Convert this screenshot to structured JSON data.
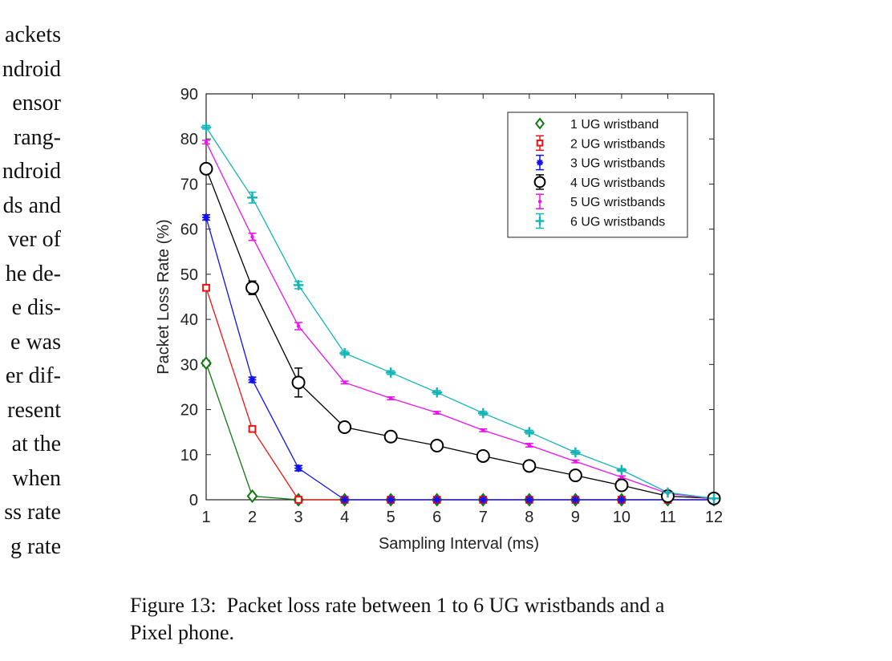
{
  "body_text_lines": [
    "ackets",
    "ndroid",
    "ensor",
    "rang-",
    "ndroid",
    "ds and",
    "ver of",
    "he de-",
    "e dis-",
    "e was",
    "er dif-",
    "resent",
    "at the",
    "when",
    "ss rate",
    "g rate"
  ],
  "caption": {
    "label": "Figure 13:",
    "line1": "Packet loss rate between 1 to 6 UG wristbands and a",
    "line2": "Pixel phone."
  },
  "chart_data": {
    "type": "line",
    "title": "",
    "xlabel": "Sampling Interval (ms)",
    "ylabel": "Packet Loss Rate (%)",
    "xlim": [
      1,
      12
    ],
    "ylim": [
      0,
      90
    ],
    "xticks": [
      1,
      2,
      3,
      4,
      5,
      6,
      7,
      8,
      9,
      10,
      11,
      12
    ],
    "yticks": [
      0,
      10,
      20,
      30,
      40,
      50,
      60,
      70,
      80,
      90
    ],
    "grid": false,
    "legend_position": "top-right",
    "x": [
      1,
      2,
      3,
      4,
      5,
      6,
      7,
      8,
      9,
      10,
      11,
      12
    ],
    "series": [
      {
        "name": "1 UG wristband",
        "color": "#117711",
        "marker": "diamond",
        "values": [
          30.3,
          0.8,
          0,
          0,
          0,
          0,
          0,
          0,
          0,
          0,
          0,
          0
        ],
        "errors": [
          0.6,
          0.3,
          0,
          0,
          0,
          0,
          0,
          0,
          0,
          0,
          0,
          0
        ]
      },
      {
        "name": "2 UG wristbands",
        "color": "#ee1111",
        "marker": "square",
        "values": [
          47,
          15.7,
          0,
          0,
          0,
          0,
          0,
          0,
          0,
          0,
          0,
          0
        ],
        "errors": [
          0.6,
          0.5,
          0,
          0,
          0,
          0,
          0,
          0,
          0,
          0,
          0,
          0
        ]
      },
      {
        "name": "3 UG wristbands",
        "color": "#1111ee",
        "marker": "asterisk",
        "values": [
          62.6,
          26.6,
          7,
          0,
          0,
          0,
          0,
          0,
          0,
          0,
          0,
          0
        ],
        "errors": [
          0.6,
          0.6,
          0.6,
          0,
          0,
          0,
          0,
          0,
          0,
          0,
          0,
          0
        ]
      },
      {
        "name": "4 UG wristbands",
        "color": "#000000",
        "marker": "circle",
        "values": [
          73.4,
          47,
          26,
          16.1,
          14,
          12,
          9.7,
          7.5,
          5.4,
          3.2,
          0.8,
          0.3
        ],
        "errors": [
          0.5,
          1.5,
          3.2,
          0.4,
          0.4,
          0.4,
          0.4,
          0.4,
          0.3,
          0.3,
          0.2,
          0.1
        ]
      },
      {
        "name": "5 UG wristbands",
        "color": "#ee11ee",
        "marker": "dot",
        "values": [
          79.3,
          58.3,
          38.5,
          26,
          22.5,
          19.3,
          15.4,
          12.1,
          8.5,
          5,
          1.4,
          0.2
        ],
        "errors": [
          0.4,
          0.8,
          0.8,
          0.3,
          0.3,
          0.3,
          0.3,
          0.4,
          0.3,
          0.3,
          0.2,
          0.1
        ]
      },
      {
        "name": "6 UG wristbands",
        "color": "#11b5b5",
        "marker": "plus",
        "values": [
          82.6,
          67,
          47.6,
          32.5,
          28.2,
          23.8,
          19.2,
          15,
          10.5,
          6.6,
          1.6,
          0.3
        ],
        "errors": [
          0.4,
          1.2,
          0.8,
          0.4,
          0.4,
          0.4,
          0.4,
          0.4,
          0.4,
          0.3,
          0.2,
          0.1
        ]
      }
    ]
  }
}
